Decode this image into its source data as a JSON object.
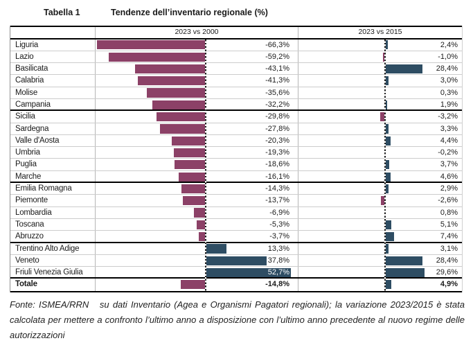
{
  "header": {
    "table_label": "Tabella 1",
    "title": "Tendenze dell’inventario regionale (%)"
  },
  "table": {
    "col1_header": "2023 vs 2000",
    "col2_header": "2023 vs 2015"
  },
  "colors": {
    "negative_bar": "#8C4167",
    "positive_bar": "#2E4D63"
  },
  "rows": [
    {
      "region": "Liguria",
      "v2000": -66.3,
      "v2015": 2.4,
      "label2000": "-66,3%",
      "label2015": "2,4%",
      "bold": false,
      "group_end": false
    },
    {
      "region": "Lazio",
      "v2000": -59.2,
      "v2015": -1.0,
      "label2000": "-59,2%",
      "label2015": "-1,0%",
      "bold": false,
      "group_end": false
    },
    {
      "region": "Basilicata",
      "v2000": -43.1,
      "v2015": 28.4,
      "label2000": "-43,1%",
      "label2015": "28,4%",
      "bold": false,
      "group_end": false
    },
    {
      "region": "Calabria",
      "v2000": -41.3,
      "v2015": 3.0,
      "label2000": "-41,3%",
      "label2015": "3,0%",
      "bold": false,
      "group_end": false
    },
    {
      "region": "Molise",
      "v2000": -35.6,
      "v2015": 0.3,
      "label2000": "-35,6%",
      "label2015": "0,3%",
      "bold": false,
      "group_end": false
    },
    {
      "region": "Campania",
      "v2000": -32.2,
      "v2015": 1.9,
      "label2000": "-32,2%",
      "label2015": "1,9%",
      "bold": false,
      "group_end": true
    },
    {
      "region": "Sicilia",
      "v2000": -29.8,
      "v2015": -3.2,
      "label2000": "-29,8%",
      "label2015": "-3,2%",
      "bold": false,
      "group_end": false
    },
    {
      "region": "Sardegna",
      "v2000": -27.8,
      "v2015": 3.3,
      "label2000": "-27,8%",
      "label2015": "3,3%",
      "bold": false,
      "group_end": false
    },
    {
      "region": "Valle d'Aosta",
      "v2000": -20.3,
      "v2015": 4.4,
      "label2000": "-20,3%",
      "label2015": "4,4%",
      "bold": false,
      "group_end": false
    },
    {
      "region": "Umbria",
      "v2000": -19.3,
      "v2015": -0.2,
      "label2000": "-19,3%",
      "label2015": "-0,2%",
      "bold": false,
      "group_end": false
    },
    {
      "region": "Puglia",
      "v2000": -18.6,
      "v2015": 3.7,
      "label2000": "-18,6%",
      "label2015": "3,7%",
      "bold": false,
      "group_end": false
    },
    {
      "region": "Marche",
      "v2000": -16.1,
      "v2015": 4.6,
      "label2000": "-16,1%",
      "label2015": "4,6%",
      "bold": false,
      "group_end": true
    },
    {
      "region": "Emilia Romagna",
      "v2000": -14.3,
      "v2015": 2.9,
      "label2000": "-14,3%",
      "label2015": "2,9%",
      "bold": false,
      "group_end": false
    },
    {
      "region": "Piemonte",
      "v2000": -13.7,
      "v2015": -2.6,
      "label2000": "-13,7%",
      "label2015": "-2,6%",
      "bold": false,
      "group_end": false
    },
    {
      "region": "Lombardia",
      "v2000": -6.9,
      "v2015": 0.8,
      "label2000": "-6,9%",
      "label2015": "0,8%",
      "bold": false,
      "group_end": false
    },
    {
      "region": "Toscana",
      "v2000": -5.3,
      "v2015": 5.1,
      "label2000": "-5,3%",
      "label2015": "5,1%",
      "bold": false,
      "group_end": false
    },
    {
      "region": "Abruzzo",
      "v2000": -3.7,
      "v2015": 7.4,
      "label2000": "-3,7%",
      "label2015": "7,4%",
      "bold": false,
      "group_end": true
    },
    {
      "region": "Trentino Alto Adige",
      "v2000": 13.3,
      "v2015": 3.1,
      "label2000": "13,3%",
      "label2015": "3,1%",
      "bold": false,
      "group_end": false
    },
    {
      "region": "Veneto",
      "v2000": 37.8,
      "v2015": 28.4,
      "label2000": "37,8%",
      "label2015": "28,4%",
      "bold": false,
      "group_end": false
    },
    {
      "region": "Friuli Venezia Giulia",
      "v2000": 52.7,
      "v2015": 29.6,
      "label2000": "52,7%",
      "label2015": "29,6%",
      "bold": false,
      "group_end": true
    },
    {
      "region": "Totale",
      "v2000": -14.8,
      "v2015": 4.9,
      "label2000": "-14,8%",
      "label2015": "4,9%",
      "bold": true,
      "group_end": false
    }
  ],
  "chart_data": {
    "type": "bar",
    "orientation": "horizontal",
    "title": "Tendenze dell’inventario regionale (%)",
    "categories": [
      "Liguria",
      "Lazio",
      "Basilicata",
      "Calabria",
      "Molise",
      "Campania",
      "Sicilia",
      "Sardegna",
      "Valle d'Aosta",
      "Umbria",
      "Puglia",
      "Marche",
      "Emilia Romagna",
      "Piemonte",
      "Lombardia",
      "Toscana",
      "Abruzzo",
      "Trentino Alto Adige",
      "Veneto",
      "Friuli Venezia Giulia",
      "Totale"
    ],
    "series": [
      {
        "name": "2023 vs 2000",
        "values": [
          -66.3,
          -59.2,
          -43.1,
          -41.3,
          -35.6,
          -32.2,
          -29.8,
          -27.8,
          -20.3,
          -19.3,
          -18.6,
          -16.1,
          -14.3,
          -13.7,
          -6.9,
          -5.3,
          -3.7,
          13.3,
          37.8,
          52.7,
          -14.8
        ]
      },
      {
        "name": "2023 vs 2015",
        "values": [
          2.4,
          -1.0,
          28.4,
          3.0,
          0.3,
          1.9,
          -3.2,
          3.3,
          4.4,
          -0.2,
          3.7,
          4.6,
          2.9,
          -2.6,
          0.8,
          5.1,
          7.4,
          3.1,
          28.4,
          29.6,
          4.9
        ]
      }
    ],
    "negative_color": "#8C4167",
    "positive_color": "#2E4D63",
    "legend_position": "none",
    "grid": "row-separators",
    "notes": "Negative values plotted as left-extending plum bars, positive as right-extending dark blue bars, dashed zero axes per panel"
  },
  "footnote": "Fonte: ISMEA/RRN   su dati Inventario (Agea e Organismi Pagatori regionali); la variazione 2023/2015 è stata calcolata per mettere a confronto l’ultimo anno a disposizione con l’ultimo anno precedente al nuovo regime delle autorizzazioni"
}
